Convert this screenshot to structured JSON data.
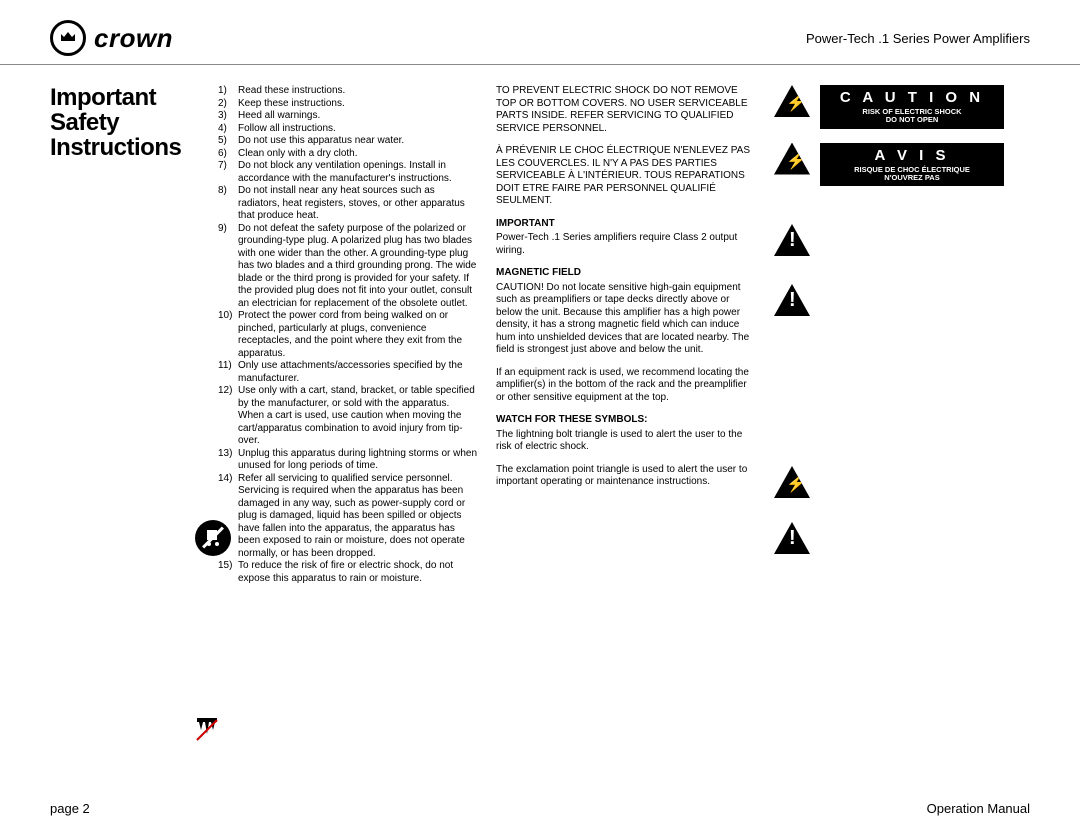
{
  "header": {
    "brand": "crown",
    "product": "Power-Tech .1 Series   Power Amplifiers"
  },
  "title": {
    "line1": "Important Safety",
    "line2": "Instructions"
  },
  "instructions": [
    {
      "n": "1)",
      "t": "Read these instructions."
    },
    {
      "n": "2)",
      "t": "Keep these instructions."
    },
    {
      "n": "3)",
      "t": "Heed all warnings."
    },
    {
      "n": "4)",
      "t": "Follow all instructions."
    },
    {
      "n": "5)",
      "t": "Do not use this apparatus near water."
    },
    {
      "n": "6)",
      "t": "Clean only with a dry cloth."
    },
    {
      "n": "7)",
      "t": "Do not block any ventilation openings. Install in accordance with the manufacturer's instructions."
    },
    {
      "n": "8)",
      "t": "Do not install near any heat sources such as radiators, heat registers, stoves, or other apparatus that produce heat."
    },
    {
      "n": "9)",
      "t": "Do not defeat the safety purpose of the polarized or grounding-type plug. A polarized plug has two blades with one wider than the other. A grounding-type plug has two blades and a third grounding prong. The wide blade or the third prong is provided for your safety. If the provided plug does not fit into your outlet, consult an electrician for replacement of the obsolete outlet."
    },
    {
      "n": "10)",
      "t": "Protect the power cord from being walked on or pinched, particularly at plugs, convenience receptacles, and the point where they exit from the apparatus."
    },
    {
      "n": "11)",
      "t": "Only use attachments/accessories specified by the manufacturer."
    },
    {
      "n": "12)",
      "t": "Use only with a cart, stand, bracket, or table specified by the manufacturer, or sold with the apparatus. When a cart is used, use caution when moving the cart/apparatus combination to avoid injury from tip-over."
    },
    {
      "n": "13)",
      "t": "Unplug this apparatus during lightning storms or when unused for long periods of time."
    },
    {
      "n": "14)",
      "t": "Refer all servicing to qualified service personnel. Servicing is required when the apparatus has been damaged in any way, such as power-supply cord or plug is damaged, liquid has been spilled or objects have fallen into the apparatus, the apparatus has been exposed to rain or moisture, does not operate normally, or has been dropped."
    },
    {
      "n": "15)",
      "t": "To reduce the risk of fire or electric shock, do not expose this apparatus to rain or moisture."
    }
  ],
  "col3": {
    "shock_en": "TO PREVENT ELECTRIC SHOCK DO NOT REMOVE TOP OR BOTTOM COVERS. NO USER SERVICEABLE PARTS INSIDE. REFER SERVICING TO QUALIFIED SERVICE PERSONNEL.",
    "shock_fr": "À PRÉVENIR LE CHOC ÉLECTRIQUE N'ENLEVEZ PAS LES COUVERCLES. IL N'Y A PAS DES PARTIES SERVICEABLE À L'INTÉRIEUR. TOUS REPARATIONS DOIT ETRE FAIRE PAR PERSONNEL QUALIFIÉ SEULMENT.",
    "important_h": "IMPORTANT",
    "important_t": "Power-Tech .1 Series amplifiers require Class 2 output wiring.",
    "magnetic_h": "MAGNETIC FIELD",
    "magnetic_t": "CAUTION!  Do not locate sensitive high-gain equipment such as preamplifiers or tape decks directly above or below the unit. Because this amplifier has a high power density, it has a strong magnetic field which can induce hum into unshielded devices that are located nearby. The field is strongest just above and below the unit.",
    "magnetic_t2": "If an equipment rack is used, we recommend locating the amplifier(s) in the bottom of the rack and the preamplifier or other sensitive equipment at the top.",
    "watch_h": "WATCH FOR THESE SYMBOLS:",
    "watch_t1": "The lightning bolt triangle is used to alert the user to the risk of electric shock.",
    "watch_t2": "The exclamation point triangle is used to alert the user to important operating or maintenance instructions."
  },
  "col4": {
    "caution_big": "C A U T I O N",
    "caution_sm1": "RISK OF ELECTRIC SHOCK",
    "caution_sm2": "DO NOT OPEN",
    "avis_big": "A V I S",
    "avis_sm1": "RISQUE DE CHOC ÉLECTRIQUE",
    "avis_sm2": "N'OUVREZ PAS"
  },
  "footer": {
    "page": "page 2",
    "manual": "Operation Manual"
  },
  "style": {
    "body_font_size": 10,
    "title_font_size": 24,
    "header_product_font_size": 13,
    "footer_font_size": 13,
    "black_bg": "#000000",
    "white": "#ffffff",
    "rule": "#888888"
  }
}
